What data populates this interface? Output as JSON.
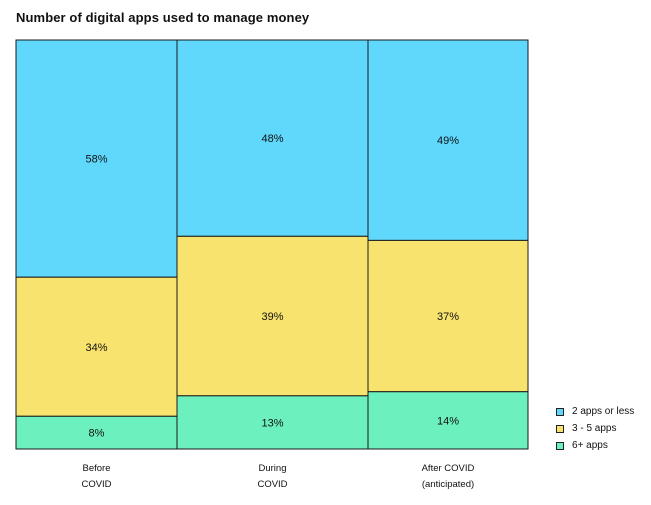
{
  "chart_data": {
    "type": "bar",
    "subtype": "100% stacked, variable-width (mosaic)",
    "title": "Number of digital apps used to manage money",
    "categories": [
      {
        "lines": [
          "Before",
          "COVID"
        ]
      },
      {
        "lines": [
          "During",
          "COVID"
        ]
      },
      {
        "lines": [
          "After COVID",
          "(anticipated)"
        ]
      }
    ],
    "series": [
      {
        "name": "2 apps or less",
        "color": "#5fd8fc",
        "values": [
          58,
          48,
          49
        ],
        "labels": [
          "58%",
          "48%",
          "49%"
        ]
      },
      {
        "name": "3 - 5 apps",
        "color": "#f8e36f",
        "values": [
          34,
          39,
          37
        ],
        "labels": [
          "34%",
          "39%",
          "37%"
        ]
      },
      {
        "name": "6+ apps",
        "color": "#6cf0bd",
        "values": [
          8,
          13,
          14
        ],
        "labels": [
          "8%",
          "13%",
          "14%"
        ]
      }
    ],
    "ylim": [
      0,
      100
    ],
    "legend_position": "bottom-right"
  }
}
